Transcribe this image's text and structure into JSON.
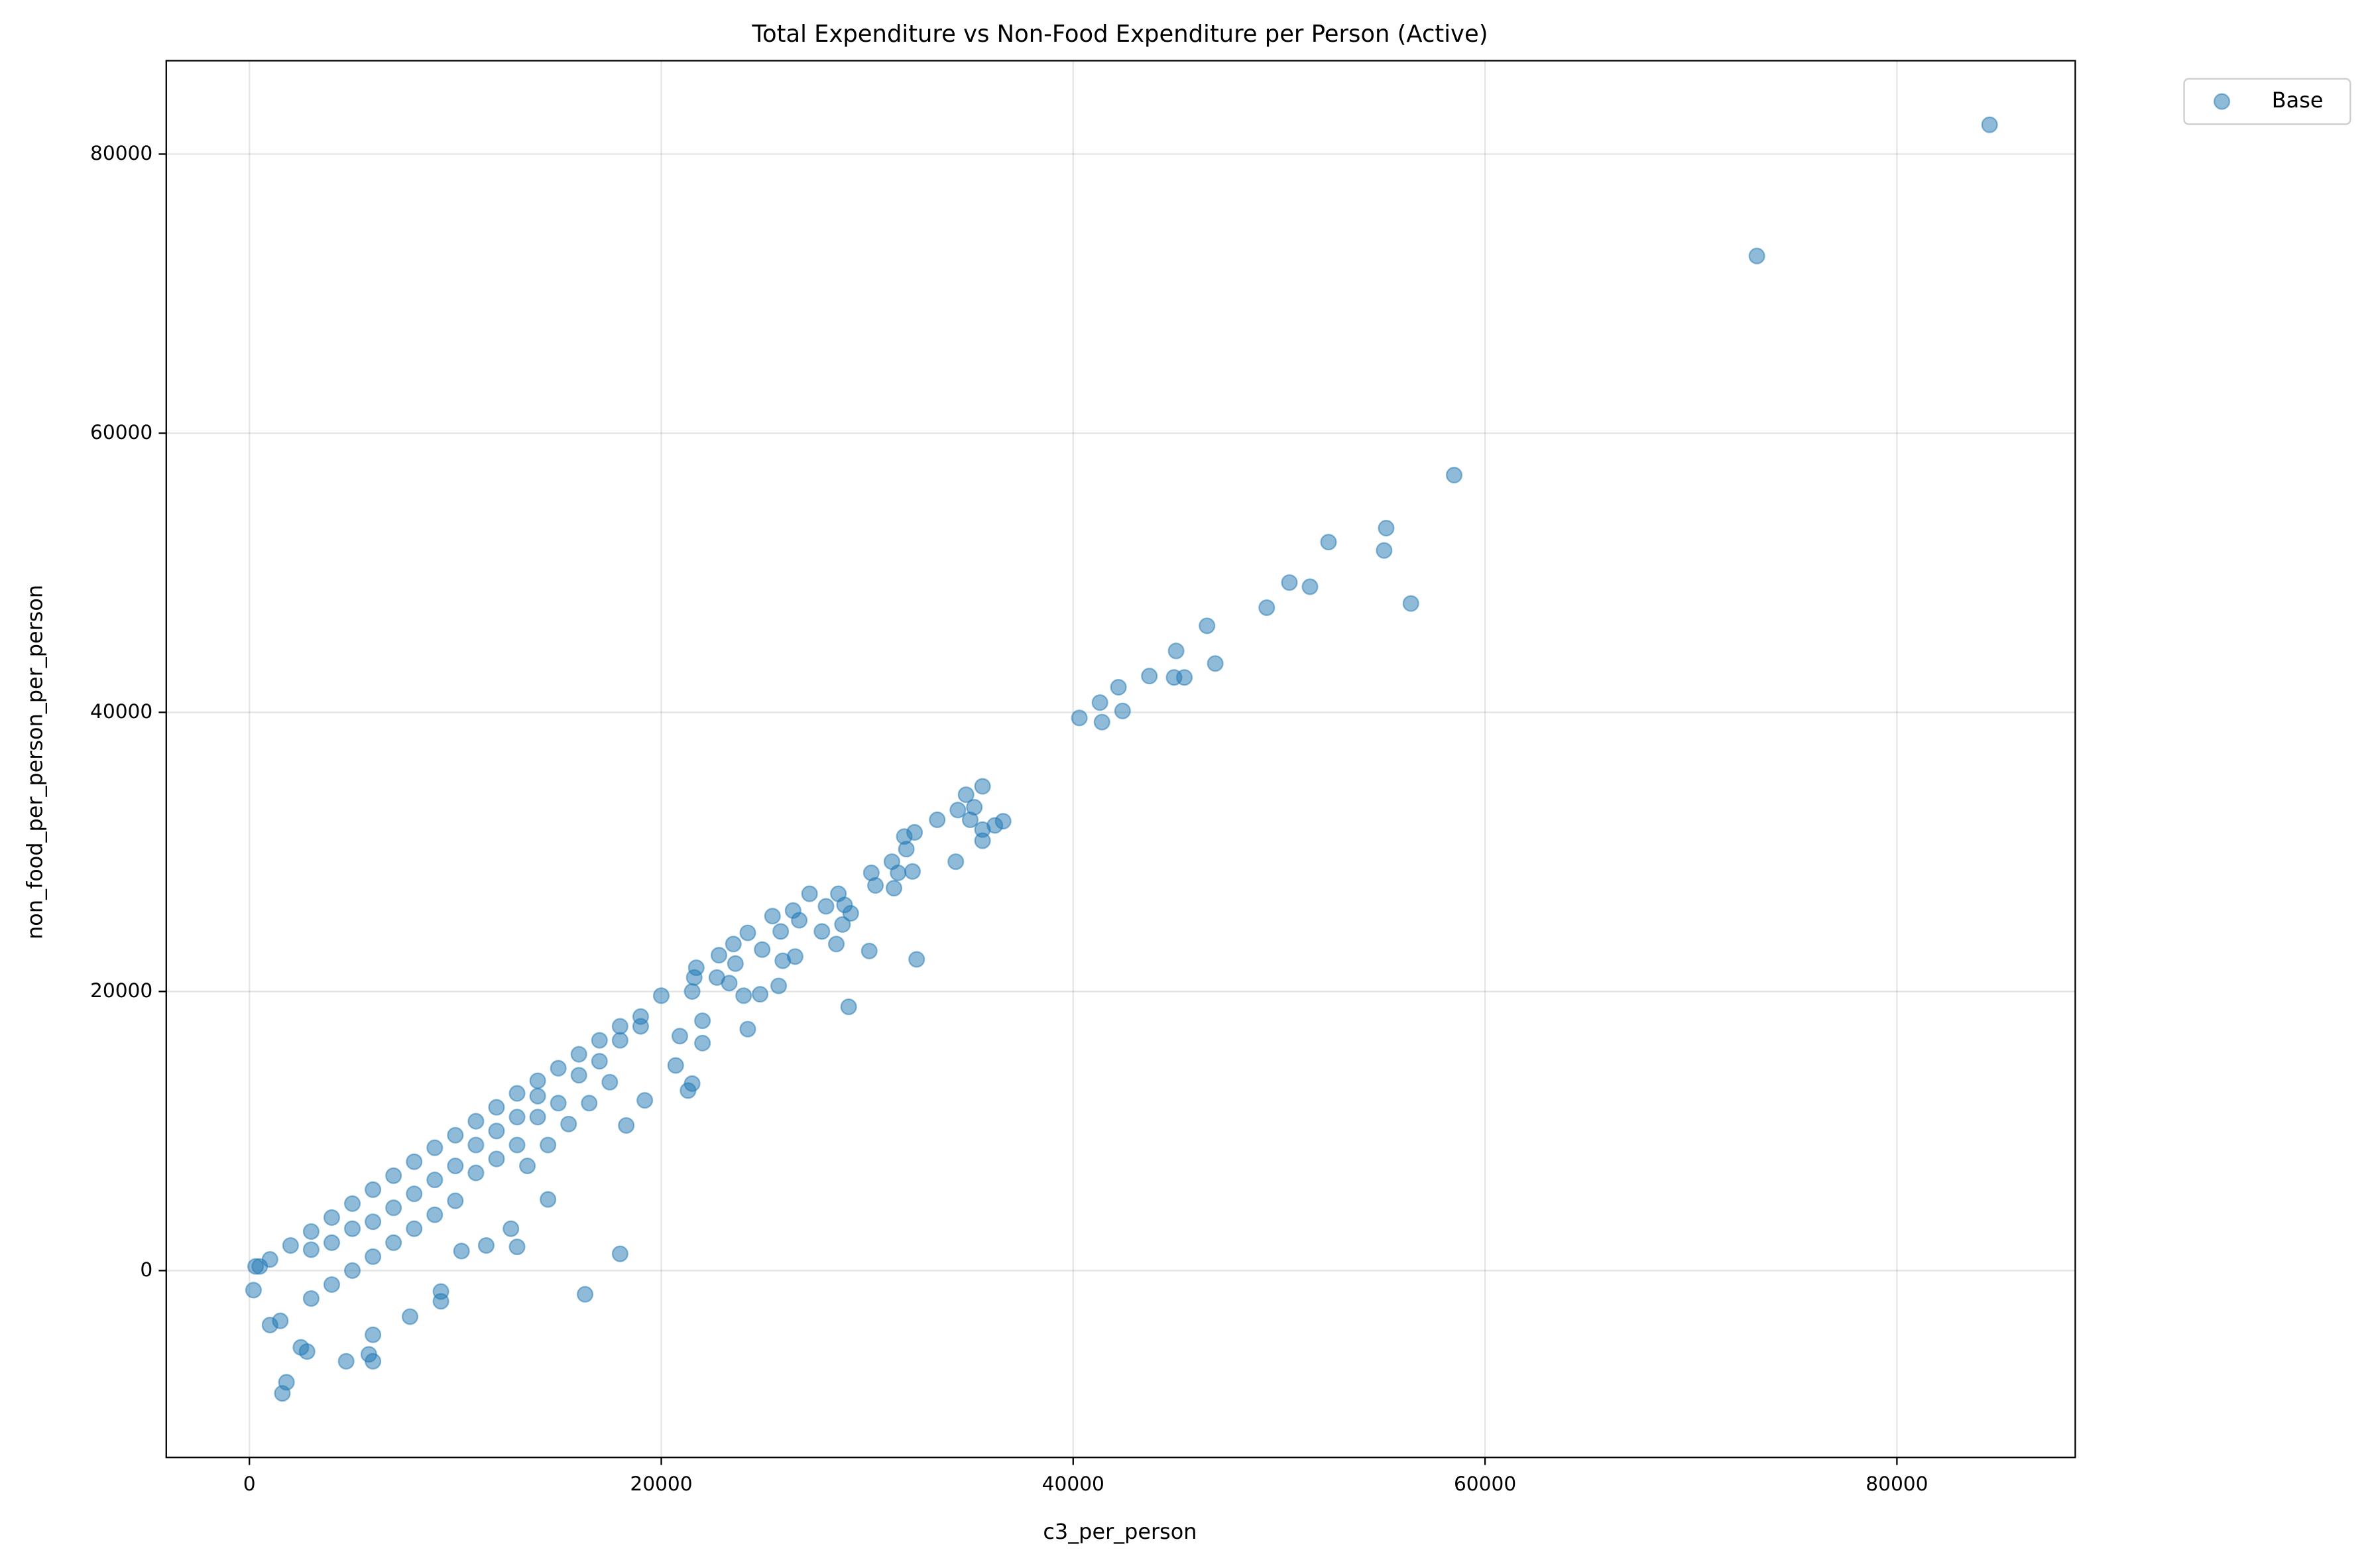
{
  "chart_data": {
    "type": "scatter",
    "title": "Total Expenditure vs Non-Food Expenditure per Person (Active)",
    "x_label": "c3_per_person",
    "y_label": "non_food_per_person_per_person",
    "x": [
      84500,
      73200,
      58500,
      52400,
      55200,
      55100,
      50500,
      51500,
      56400,
      49400,
      46500,
      45000,
      46900,
      43700,
      44900,
      45400,
      42200,
      41300,
      40300,
      41400,
      42400,
      35600,
      34800,
      36600,
      35200,
      33400,
      34400,
      35000,
      36200,
      35600,
      35600,
      31800,
      32300,
      31900,
      34300,
      31200,
      30200,
      31500,
      32200,
      30400,
      31300,
      28600,
      27200,
      28900,
      29200,
      28000,
      27800,
      28500,
      28800,
      30100,
      32400,
      29100,
      24200,
      26400,
      25400,
      26700,
      25800,
      24200,
      23500,
      24900,
      22800,
      23600,
      25900,
      26500,
      25700,
      24800,
      24000,
      21700,
      21600,
      22700,
      23300,
      21500,
      21500,
      21300,
      22000,
      22000,
      20900,
      20700,
      19200,
      18300,
      18000,
      16300,
      20000,
      19000,
      18000,
      17000,
      16000,
      15000,
      14000,
      13000,
      12000,
      11000,
      10000,
      9000,
      8000,
      7000,
      6000,
      5000,
      4000,
      3000,
      2000,
      1000,
      500,
      15000,
      14000,
      13000,
      12000,
      11000,
      10000,
      9000,
      8000,
      7000,
      6000,
      5000,
      4000,
      3000,
      14500,
      13000,
      12700,
      11500,
      10300,
      9300,
      9300,
      7800,
      6000,
      5800,
      6000,
      4700,
      2800,
      2500,
      1800,
      1600,
      1000,
      1500,
      200,
      300,
      3000,
      4000,
      5000,
      6000,
      7000,
      8000,
      9000,
      10000,
      11000,
      12000,
      13000,
      14000,
      16000,
      17000,
      18000,
      19000,
      16500,
      17500,
      15500,
      14500,
      13500
    ],
    "series": [
      {
        "name": "Base",
        "color": "#1f77b4",
        "values": [
          82100,
          72700,
          57000,
          52200,
          53200,
          51600,
          49300,
          49000,
          47800,
          47500,
          46200,
          44400,
          43500,
          42600,
          42500,
          42500,
          41800,
          40700,
          39600,
          39300,
          40100,
          34700,
          34100,
          32200,
          33200,
          32300,
          33000,
          32300,
          31900,
          31600,
          30800,
          31100,
          31400,
          30200,
          29300,
          29300,
          28500,
          28500,
          28600,
          27600,
          27400,
          27000,
          27000,
          26200,
          25600,
          26100,
          24300,
          23400,
          24800,
          22900,
          22300,
          18900,
          17300,
          25800,
          25400,
          25100,
          24300,
          24200,
          23400,
          23000,
          22600,
          22000,
          22200,
          22500,
          20400,
          19800,
          19700,
          21700,
          21000,
          21000,
          20600,
          20000,
          13400,
          12900,
          17900,
          16300,
          16800,
          14700,
          12200,
          10400,
          1200,
          -1700,
          19700,
          18200,
          17500,
          16500,
          15500,
          14500,
          13600,
          12700,
          11700,
          10700,
          9700,
          8800,
          7800,
          6800,
          5800,
          4800,
          3800,
          2800,
          1800,
          800,
          300,
          12000,
          11000,
          9000,
          8000,
          7000,
          5000,
          4000,
          3000,
          2000,
          1000,
          0,
          -1000,
          -2000,
          5100,
          1700,
          3000,
          1800,
          1400,
          -1500,
          -2200,
          -3300,
          -4600,
          -6000,
          -6500,
          -6500,
          -5800,
          -5500,
          -8000,
          -8800,
          -3900,
          -3600,
          -1400,
          300,
          1500,
          2000,
          3000,
          3500,
          4500,
          5500,
          6500,
          7500,
          9000,
          10000,
          11000,
          12500,
          14000,
          15000,
          16500,
          17500,
          12000,
          13500,
          10500,
          9000,
          7500
        ]
      }
    ],
    "xlim": [
      -4037,
      88660
    ],
    "ylim": [
      -13387,
      86693
    ],
    "xticks": [
      0,
      20000,
      40000,
      60000,
      80000
    ],
    "yticks": [
      0,
      20000,
      40000,
      60000,
      80000
    ],
    "grid": true,
    "legend": "outside upper right",
    "alpha": 0.5
  }
}
